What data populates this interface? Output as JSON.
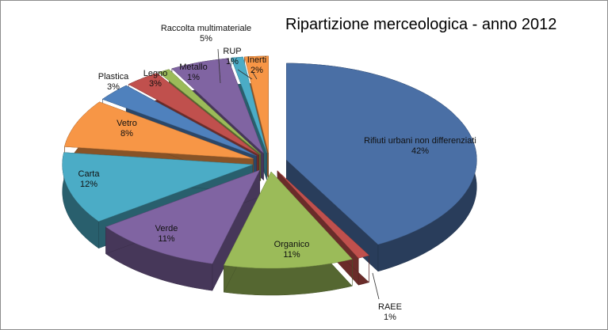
{
  "chart_data": {
    "type": "pie3d",
    "title": "Ripartizione merceologica - anno 2012",
    "categories": [
      "Rifiuti urbani non differenziati",
      "RAEE",
      "Organico",
      "Verde",
      "Carta",
      "Vetro",
      "Plastica",
      "Legno",
      "Metallo",
      "Raccolta multimateriale",
      "RUP",
      "Inerti"
    ],
    "values": [
      42,
      1,
      11,
      11,
      12,
      8,
      3,
      3,
      1,
      5,
      1,
      2
    ],
    "value_labels": [
      "42%",
      "1%",
      "11%",
      "11%",
      "12%",
      "8%",
      "3%",
      "3%",
      "1%",
      "5%",
      "1%",
      "2%"
    ],
    "colors": [
      "#4a6fa5",
      "#c0504d",
      "#9bbb59",
      "#8064a2",
      "#4bacc6",
      "#f79646",
      "#4f81bd",
      "#c0504d",
      "#9bbb59",
      "#8064a2",
      "#4bacc6",
      "#f79646"
    ]
  }
}
